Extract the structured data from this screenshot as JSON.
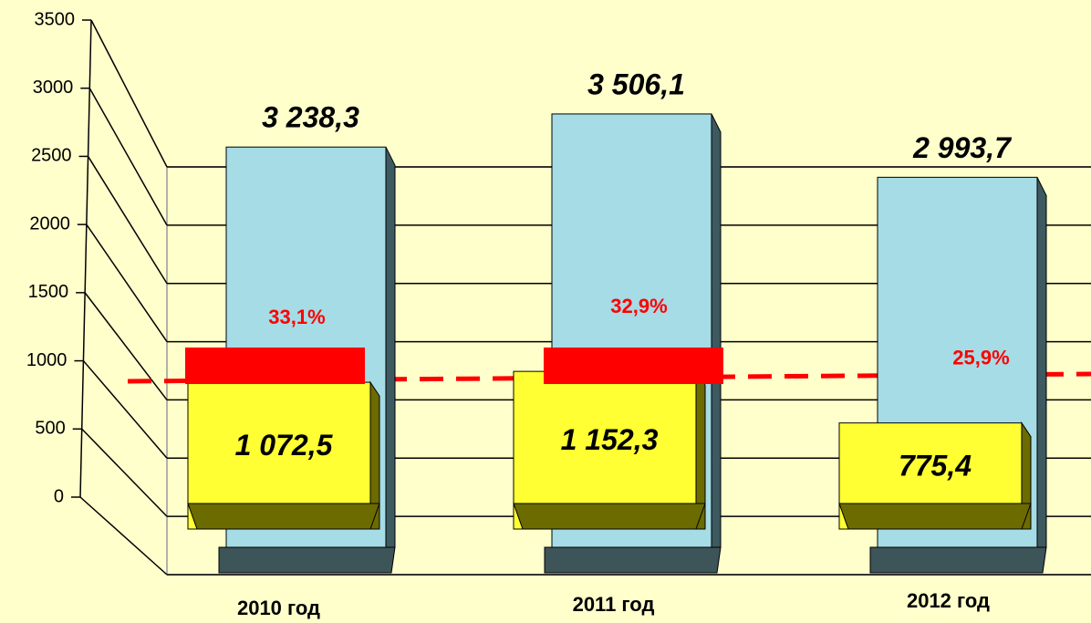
{
  "chart_data": {
    "type": "bar3d",
    "categories": [
      "2010 год",
      "2011 год",
      "2012 год"
    ],
    "series": [
      {
        "color": "#a6dce6",
        "values": [
          3238.3,
          3506.1,
          2993.7
        ],
        "value_labels": [
          "3 238,3",
          "3 506,1",
          "2 993,7"
        ]
      },
      {
        "color": "#ffff33",
        "values": [
          1072.5,
          1152.3,
          775.4
        ],
        "value_labels": [
          "1 072,5",
          "1 152,3",
          "775,4"
        ]
      }
    ],
    "percent_values": [
      33.1,
      32.9,
      25.9
    ],
    "percent_labels": [
      "33,1%",
      "32,9%",
      "25,9%"
    ],
    "ylim": [
      0,
      3500
    ],
    "yticks": [
      0,
      500,
      1000,
      1500,
      2000,
      2500,
      3000,
      3500
    ],
    "grid": true
  }
}
